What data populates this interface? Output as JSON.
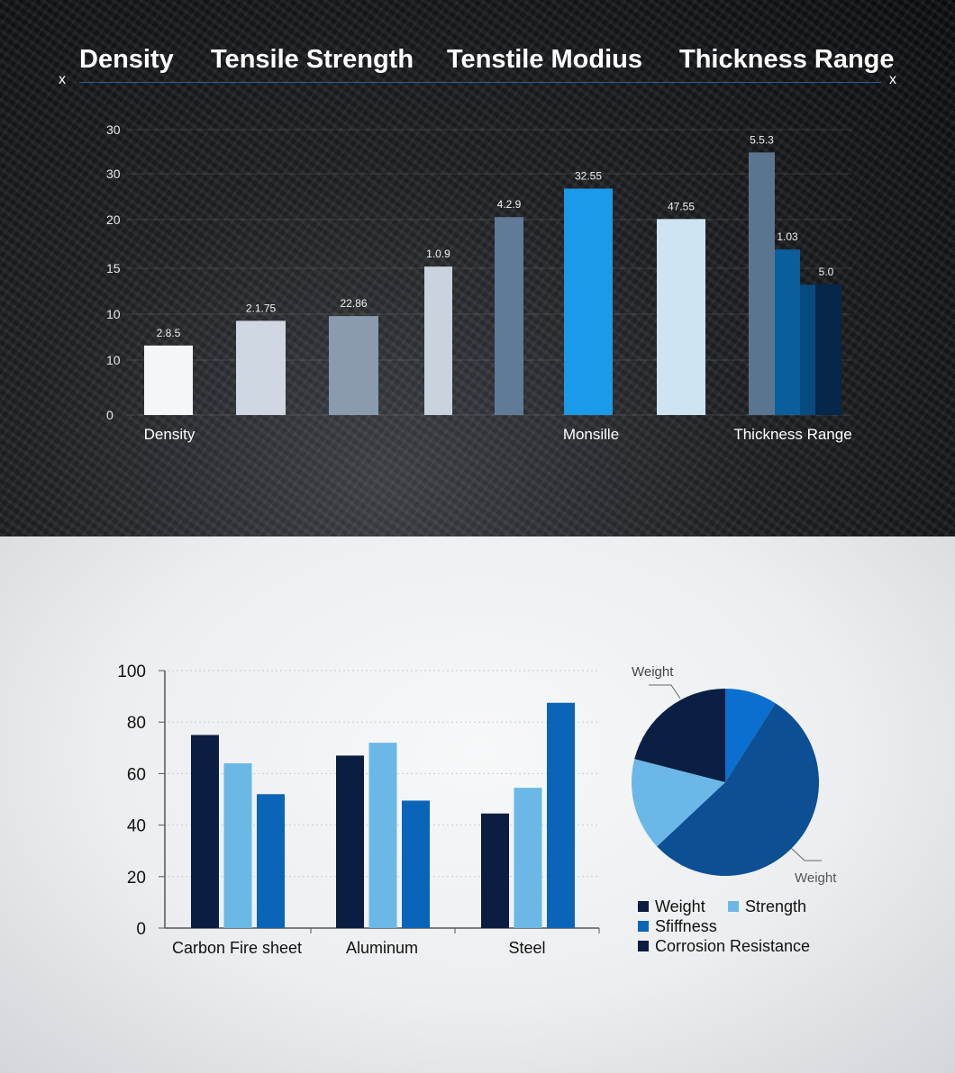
{
  "header": {
    "tabs": [
      "Density",
      "Tensile Strength",
      "Tenstile Modius",
      "Thickness Range"
    ],
    "left_mark": "x",
    "right_mark": "x",
    "accent": "#2f6fb3"
  },
  "chart_data": [
    {
      "type": "bar",
      "y_tick_labels": [
        "0",
        "10",
        "10",
        "15",
        "20",
        "30",
        "30"
      ],
      "ylim": [
        0,
        30
      ],
      "grid": true,
      "category_labels": [
        "Density",
        "Monsille",
        "Thickness Range"
      ],
      "bars": [
        {
          "label": "2.8.5",
          "value": 7.3,
          "color": "#f4f6f8"
        },
        {
          "label": "2.1.75",
          "value": 9.9,
          "color": "#cfd8e2"
        },
        {
          "label": "22.86",
          "value": 10.4,
          "color": "#8a9bb0"
        },
        {
          "label": "1.0.9",
          "value": 15.6,
          "color": "#c8d3de"
        },
        {
          "label": "4.2.9",
          "value": 20.8,
          "color": "#5f7b98"
        },
        {
          "label": "32.55",
          "value": 23.8,
          "color": "#1a9ae8"
        },
        {
          "label": "47.55",
          "value": 20.6,
          "color": "#cfe4f3"
        },
        {
          "label": "5.5.3",
          "value": 27.6,
          "color": "#5a7590"
        },
        {
          "label": "1.03",
          "value": 17.4,
          "color": "#0a5e9c"
        },
        {
          "label": "",
          "value": 13.7,
          "color": "#074a80"
        },
        {
          "label": "5.0",
          "value": 13.7,
          "color": "#06264a"
        }
      ]
    },
    {
      "type": "bar",
      "categories": [
        "Carbon Fire sheet",
        "Aluminum",
        "Steel"
      ],
      "ylim": [
        0,
        100
      ],
      "y_ticks": [
        0,
        20,
        40,
        60,
        80,
        100
      ],
      "grid": true,
      "series": [
        {
          "values": [
            75,
            67,
            44.5
          ],
          "color": "#0b1d40"
        },
        {
          "values": [
            64,
            72,
            54.5
          ],
          "color": "#6bb8e6"
        },
        {
          "values": [
            52,
            49.5,
            87.5
          ],
          "color": "#0a64b8"
        }
      ]
    },
    {
      "type": "pie",
      "slices": [
        {
          "value": 9,
          "color": "#0a6fcf"
        },
        {
          "value": 54,
          "color": "#0d4f94"
        },
        {
          "value": 16,
          "color": "#6bb8e8"
        },
        {
          "value": 21,
          "color": "#0b1f45"
        }
      ],
      "annotations": [
        "Weight",
        "Weight"
      ],
      "legend": [
        {
          "label": "Weight",
          "color": "#0b1d40"
        },
        {
          "label": "Strength",
          "color": "#6bb8e6"
        },
        {
          "label": "Sfiffness",
          "color": "#0a64b8"
        },
        {
          "label": "Corrosion Resistance",
          "color": "#0b1d40"
        }
      ],
      "legend_position": "bottom"
    }
  ]
}
